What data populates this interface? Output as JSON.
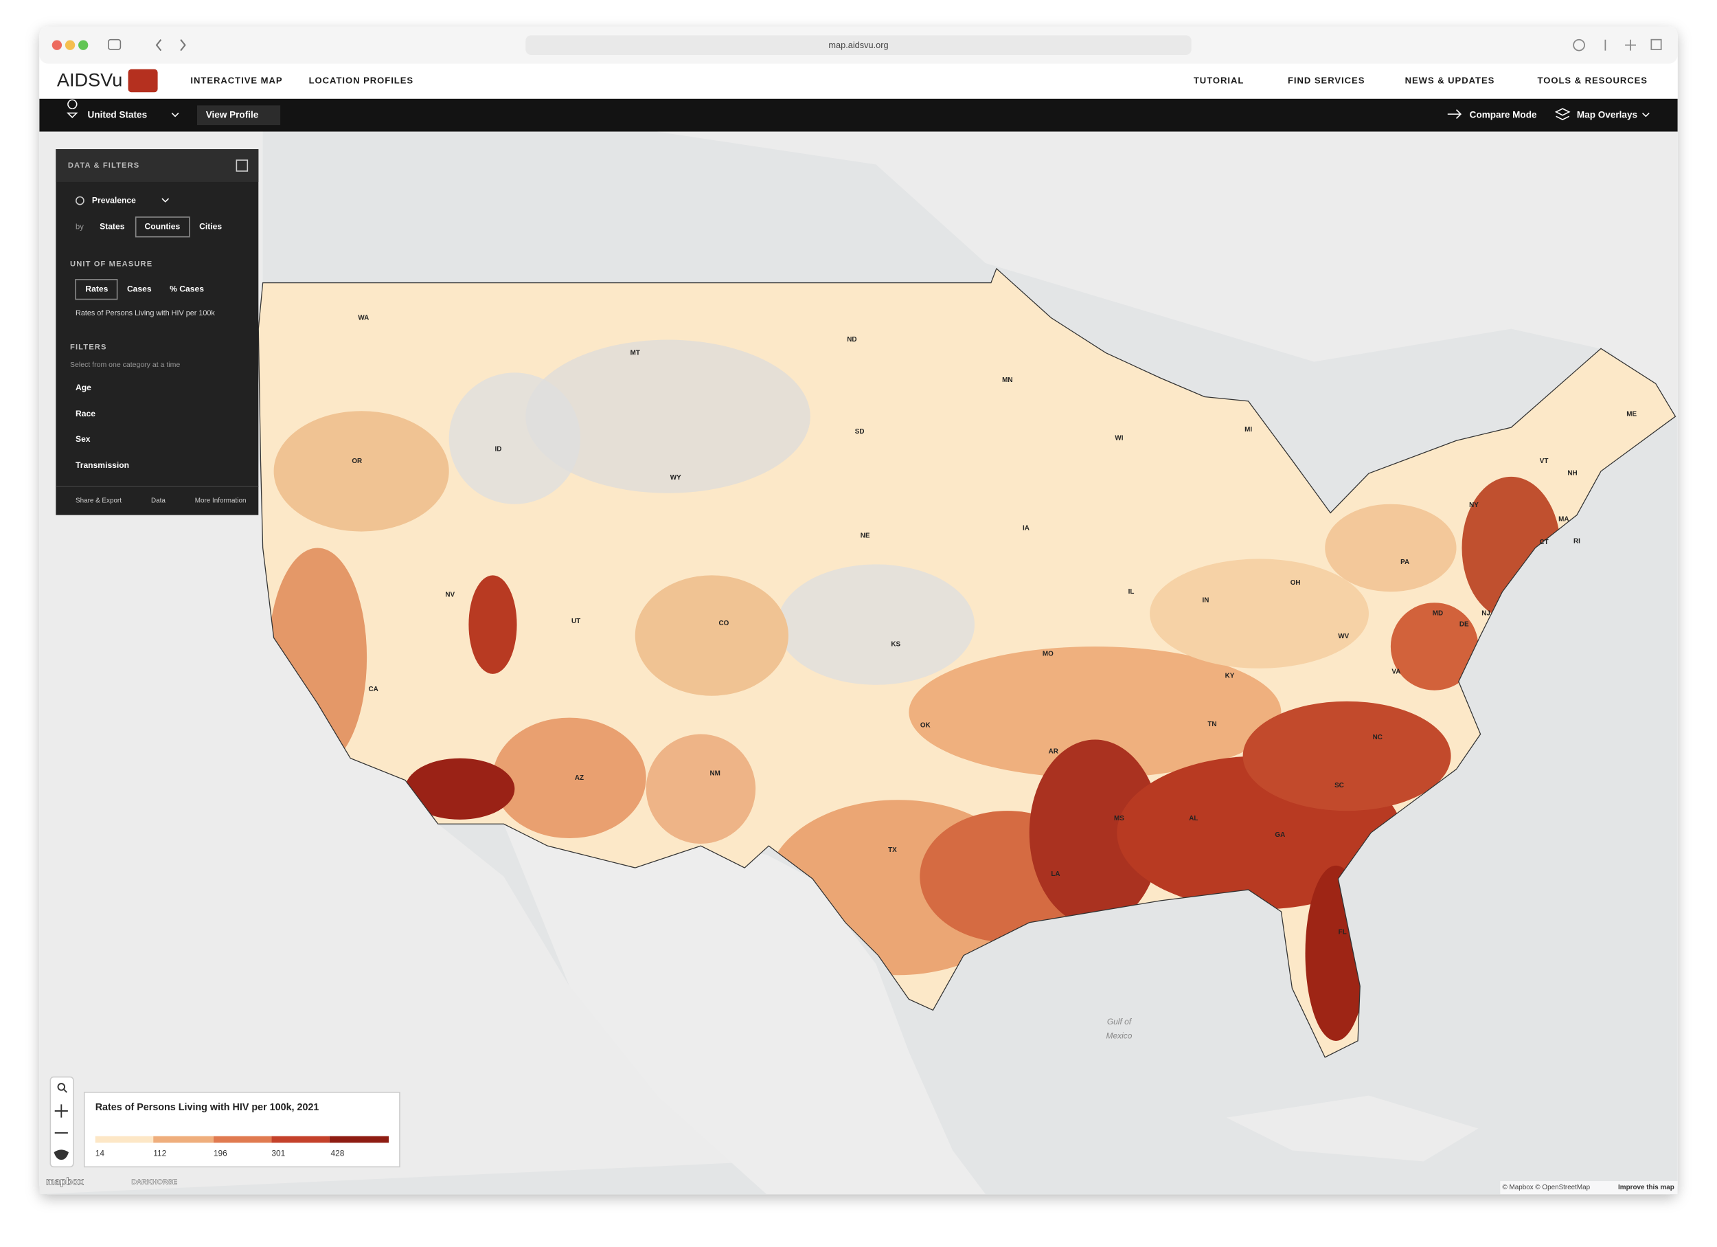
{
  "browser": {
    "url": "map.aidsvu.org"
  },
  "nav": {
    "logo": "AIDSVu",
    "links": [
      "INTERACTIVE MAP",
      "LOCATION PROFILES",
      "TUTORIAL",
      "FIND SERVICES",
      "NEWS & UPDATES",
      "TOOLS & RESOURCES"
    ]
  },
  "toolbar": {
    "location": "United States",
    "view_profile": "View Profile",
    "compare_mode": "Compare Mode",
    "map_overlays": "Map Overlays"
  },
  "panel": {
    "title": "DATA & FILTERS",
    "indicator": "Prevalence",
    "by_label": "by",
    "geographies": [
      "States",
      "Counties",
      "Cities"
    ],
    "unit_title": "UNIT OF MEASURE",
    "units": [
      "Rates",
      "Cases",
      "% Cases"
    ],
    "unit_description": "Rates of Persons Living with HIV per 100k",
    "filters_title": "FILTERS",
    "filters_hint": "Select from one category at a time",
    "filters": [
      "Age",
      "Race",
      "Sex",
      "Transmission"
    ],
    "footer": [
      "Share & Export",
      "Data",
      "More Information"
    ]
  },
  "map": {
    "state_labels": [
      "WA",
      "MT",
      "ND",
      "MN",
      "ID",
      "OR",
      "SD",
      "WI",
      "MI",
      "WY",
      "NE",
      "IA",
      "NY",
      "VT",
      "NH",
      "ME",
      "MA",
      "CT",
      "RI",
      "PA",
      "OH",
      "IN",
      "IL",
      "NV",
      "UT",
      "CO",
      "KS",
      "MO",
      "NJ",
      "MD",
      "DE",
      "WV",
      "KY",
      "VA",
      "CA",
      "OK",
      "AR",
      "TN",
      "NC",
      "AZ",
      "NM",
      "SC",
      "MS",
      "AL",
      "GA",
      "TX",
      "LA",
      "FL"
    ],
    "water_label": [
      "Gulf of",
      "Mexico"
    ]
  },
  "legend": {
    "title": "Rates of Persons Living with HIV per 100k, 2021",
    "breaks": [
      14,
      112,
      196,
      301,
      428
    ]
  },
  "attribution": {
    "brand": "mapbox",
    "partner": "DARKHORSE",
    "credits": "© Mapbox © OpenStreetMap",
    "improve": "Improve this map"
  }
}
